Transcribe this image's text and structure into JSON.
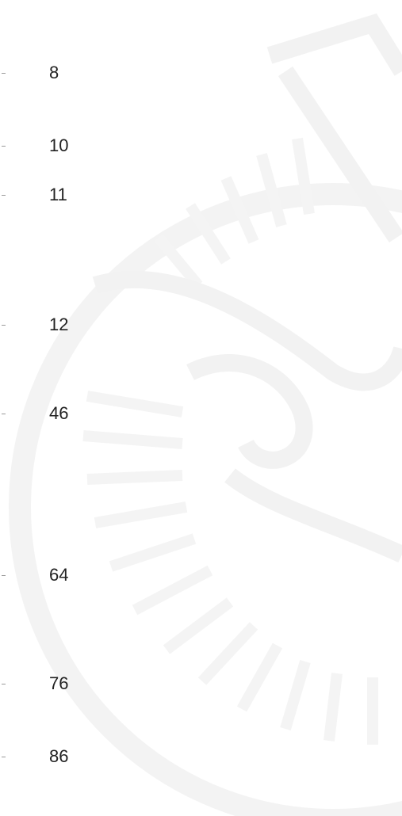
{
  "items": [
    8,
    10,
    11,
    12,
    46,
    64,
    76,
    86
  ]
}
